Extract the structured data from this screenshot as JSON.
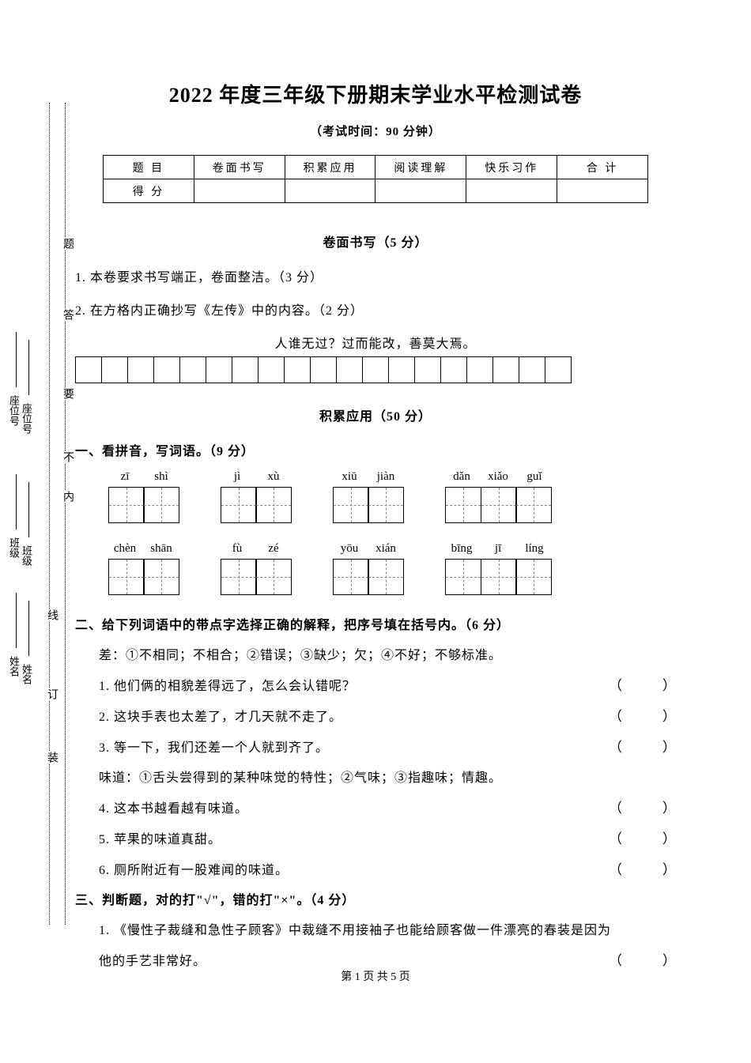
{
  "title": "2022 年度三年级下册期末学业水平检测试卷",
  "subtitle": "（考试时间：90 分钟）",
  "score_table": {
    "row1": [
      "题 目",
      "卷面书写",
      "积累应用",
      "阅读理解",
      "快乐习作",
      "合 计"
    ],
    "row2": [
      "得 分",
      "",
      "",
      "",
      "",
      ""
    ]
  },
  "section1": {
    "header": "卷面书写（5 分）",
    "line1": "1. 本卷要求书写端正，卷面整洁。（3 分）",
    "line2": "2. 在方格内正确抄写《左传》中的内容。（2 分）",
    "quote": "人谁无过？过而能改，善莫大焉。",
    "grid_cells": 19
  },
  "section2": {
    "header": "积累应用（50 分）",
    "q1": {
      "title": "一、看拼音，写词语。（9 分）",
      "row1": [
        {
          "pinyin": [
            "zī",
            "shì"
          ],
          "boxes": 2
        },
        {
          "pinyin": [
            "jì",
            "xù"
          ],
          "boxes": 2
        },
        {
          "pinyin": [
            "xiū",
            "jiàn"
          ],
          "boxes": 2
        },
        {
          "pinyin": [
            "dǎn",
            "xiǎo",
            "guǐ"
          ],
          "boxes": 3
        }
      ],
      "row2": [
        {
          "pinyin": [
            "chèn",
            "shān"
          ],
          "boxes": 2
        },
        {
          "pinyin": [
            "fù",
            "zé"
          ],
          "boxes": 2
        },
        {
          "pinyin": [
            "yōu",
            "xián"
          ],
          "boxes": 2
        },
        {
          "pinyin": [
            "bīng",
            "jī",
            "líng"
          ],
          "boxes": 3
        }
      ]
    },
    "q2": {
      "title": "二、给下列词语中的带点字选择正确的解释，把序号填在括号内。（6 分）",
      "def1": "差：①不相同；不相合；②错误；③缺少；欠；④不好；不够标准。",
      "s1": "1. 他们俩的相貌差得远了，怎么会认错呢？",
      "s2": "2. 这块手表也太差了，才几天就不走了。",
      "s3": "3. 等一下，我们还差一个人就到齐了。",
      "def2": "味道：①舌头尝得到的某种味觉的特性；②气味；③指趣味；情趣。",
      "s4": "4. 这本书越看越有味道。",
      "s5": "5. 苹果的味道真甜。",
      "s6": "6. 厕所附近有一股难闻的味道。"
    },
    "q3": {
      "title": "三、判断题，对的打\"√\"，错的打\"×\"。（4 分）",
      "s1a": "1. 《慢性子裁缝和急性子顾客》中裁缝不用接袖子也能给顾客做一件漂亮的春装是因为",
      "s1b": "他的手艺非常好。"
    }
  },
  "paren": "（　　　）",
  "footer": "第 1 页  共 5 页",
  "margin": {
    "labels_outer": [
      "姓名",
      "班级",
      "座位号"
    ],
    "labels_inner": [
      "姓名",
      "班级",
      "座位号"
    ],
    "chars_l1": [
      "装",
      "订",
      "线"
    ],
    "chars_l2": [
      "内",
      "不",
      "要",
      "答",
      "题"
    ]
  },
  "colors": {
    "text": "#000000",
    "background": "#ffffff",
    "dash": "#888888"
  }
}
